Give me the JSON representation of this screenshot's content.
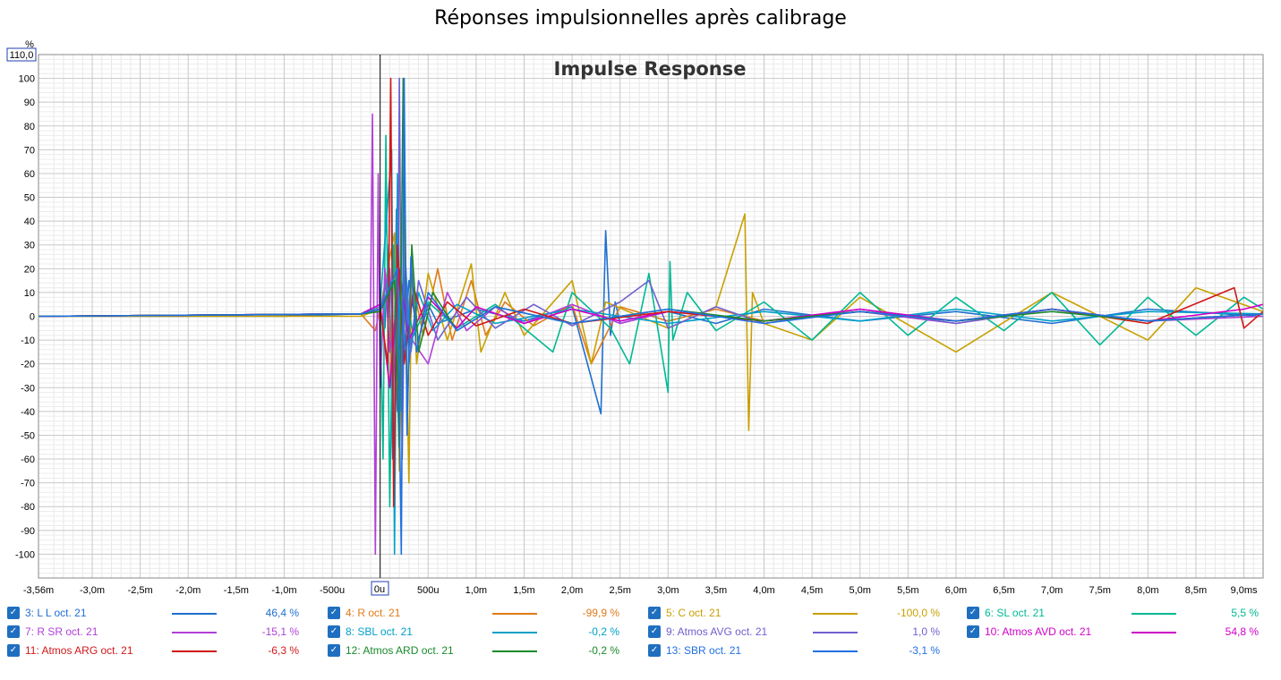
{
  "page_title": "Réponses impulsionnelles après calibrage",
  "chart_data": {
    "type": "line",
    "title": "Impulse Response",
    "ylabel": "%",
    "y_top_marker": "110,0",
    "x_zero_marker": "0u",
    "xlim": [
      -3.56,
      9.2
    ],
    "ylim": [
      -110,
      110
    ],
    "x_ticks": [
      {
        "v": -3.56,
        "label": "-3,56m"
      },
      {
        "v": -3.0,
        "label": "-3,0m"
      },
      {
        "v": -2.5,
        "label": "-2,5m"
      },
      {
        "v": -2.0,
        "label": "-2,0m"
      },
      {
        "v": -1.5,
        "label": "-1,5m"
      },
      {
        "v": -1.0,
        "label": "-1,0m"
      },
      {
        "v": -0.5,
        "label": "-500u"
      },
      {
        "v": 0.5,
        "label": "500u"
      },
      {
        "v": 1.0,
        "label": "1,0m"
      },
      {
        "v": 1.5,
        "label": "1,5m"
      },
      {
        "v": 2.0,
        "label": "2,0m"
      },
      {
        "v": 2.5,
        "label": "2,5m"
      },
      {
        "v": 3.0,
        "label": "3,0m"
      },
      {
        "v": 3.5,
        "label": "3,5m"
      },
      {
        "v": 4.0,
        "label": "4,0m"
      },
      {
        "v": 4.5,
        "label": "4,5m"
      },
      {
        "v": 5.0,
        "label": "5,0m"
      },
      {
        "v": 5.5,
        "label": "5,5m"
      },
      {
        "v": 6.0,
        "label": "6,0m"
      },
      {
        "v": 6.5,
        "label": "6,5m"
      },
      {
        "v": 7.0,
        "label": "7,0m"
      },
      {
        "v": 7.5,
        "label": "7,5m"
      },
      {
        "v": 8.0,
        "label": "8,0m"
      },
      {
        "v": 8.5,
        "label": "8,5m"
      },
      {
        "v": 9.0,
        "label": "9,0ms"
      }
    ],
    "y_ticks": [
      100,
      90,
      80,
      70,
      60,
      50,
      40,
      30,
      20,
      10,
      0,
      -10,
      -20,
      -30,
      -40,
      -50,
      -60,
      -70,
      -80,
      -90,
      -100
    ],
    "series": [
      {
        "name": "3: L L oct. 21",
        "value": "46,4 %",
        "color": "#1f6fd0",
        "x": [
          -3.56,
          -1.0,
          -0.2,
          0.0,
          0.05,
          0.09,
          0.13,
          0.17,
          0.22,
          0.3,
          0.4,
          0.5,
          0.6,
          1.0,
          1.5,
          2.0,
          2.3,
          2.35,
          2.4,
          2.45,
          2.5,
          3.0,
          3.5,
          4.0,
          5.0,
          6.0,
          7.0,
          8.0,
          9.2
        ],
        "y": [
          0,
          0,
          1,
          2,
          -5,
          30,
          -60,
          45,
          -35,
          15,
          -10,
          5,
          -3,
          3,
          -2,
          4,
          -41,
          36,
          -8,
          6,
          -3,
          2,
          -3,
          3,
          -2,
          2,
          -3,
          3,
          0
        ]
      },
      {
        "name": "4: R oct. 21",
        "value": "-99,9 %",
        "color": "#e07b1a",
        "x": [
          -3.56,
          -0.2,
          -0.05,
          0.0,
          0.1,
          0.14,
          0.18,
          0.22,
          0.27,
          0.33,
          0.45,
          0.6,
          0.75,
          0.95,
          1.1,
          1.3,
          1.6,
          2.0,
          2.2,
          2.5,
          3.0,
          3.5,
          4.0,
          5.0,
          6.0,
          7.0,
          8.0,
          9.2
        ],
        "y": [
          0,
          1,
          -6,
          4,
          -30,
          25,
          -15,
          10,
          -5,
          15,
          -8,
          20,
          -10,
          15,
          -8,
          6,
          -4,
          5,
          -20,
          4,
          -2,
          3,
          -2,
          2,
          -2,
          3,
          -2,
          1
        ]
      },
      {
        "name": "5: C oct. 21",
        "value": "-100,0 %",
        "color": "#c8a000",
        "x": [
          -3.56,
          -0.2,
          0.0,
          0.15,
          0.2,
          0.25,
          0.3,
          0.33,
          0.38,
          0.5,
          0.7,
          0.95,
          1.05,
          1.3,
          1.5,
          2.0,
          2.2,
          2.35,
          3.0,
          3.5,
          3.8,
          3.84,
          3.88,
          4.0,
          4.5,
          5.0,
          6.0,
          7.0,
          8.0,
          8.5,
          9.2
        ],
        "y": [
          0,
          0,
          3,
          35,
          -65,
          40,
          -70,
          25,
          -20,
          18,
          -10,
          22,
          -15,
          10,
          -8,
          15,
          -20,
          6,
          -5,
          4,
          43,
          -48,
          10,
          -3,
          -10,
          8,
          -15,
          10,
          -10,
          12,
          2
        ]
      },
      {
        "name": "6: SL oct. 21",
        "value": "5,5 %",
        "color": "#00b894",
        "x": [
          -3.56,
          -0.2,
          0.0,
          0.03,
          0.06,
          0.1,
          0.14,
          0.2,
          0.25,
          0.35,
          0.5,
          0.8,
          1.2,
          1.8,
          2.0,
          2.4,
          2.6,
          2.8,
          3.0,
          3.02,
          3.05,
          3.2,
          3.5,
          4.0,
          4.5,
          5.0,
          5.5,
          6.0,
          6.5,
          7.0,
          7.5,
          8.0,
          8.5,
          9.0,
          9.2
        ],
        "y": [
          0,
          1,
          4,
          -60,
          76,
          -80,
          30,
          -20,
          10,
          -8,
          6,
          -5,
          5,
          -15,
          10,
          -5,
          -20,
          18,
          -32,
          23,
          -10,
          10,
          -6,
          6,
          -10,
          10,
          -8,
          8,
          -6,
          10,
          -12,
          8,
          -8,
          8,
          3
        ]
      },
      {
        "name": "7: R SR oct. 21",
        "value": "-15,1 %",
        "color": "#b040d8",
        "x": [
          -3.56,
          -0.2,
          -0.1,
          -0.08,
          -0.05,
          -0.02,
          0.0,
          0.05,
          0.1,
          0.2,
          0.3,
          0.5,
          0.7,
          0.9,
          1.2,
          1.5,
          2.0,
          2.5,
          3.0,
          4.0,
          5.0,
          6.0,
          7.0,
          8.0,
          9.2
        ],
        "y": [
          0,
          1,
          3,
          85,
          -100,
          60,
          -30,
          20,
          -15,
          10,
          -8,
          -20,
          10,
          -6,
          4,
          -3,
          5,
          -3,
          2,
          -2,
          2,
          -3,
          3,
          -2,
          0
        ]
      },
      {
        "name": "8: SBL oct. 21",
        "value": "-0,2 %",
        "color": "#00a0c8",
        "x": [
          -3.56,
          -0.2,
          0.0,
          0.12,
          0.15,
          0.18,
          0.22,
          0.26,
          0.32,
          0.4,
          0.55,
          0.8,
          1.2,
          2.0,
          3.0,
          4.0,
          5.0,
          6.0,
          7.0,
          8.0,
          9.2
        ],
        "y": [
          0,
          1,
          5,
          70,
          -100,
          60,
          -40,
          25,
          -15,
          10,
          -6,
          5,
          -3,
          3,
          -3,
          2,
          -2,
          3,
          -2,
          2,
          1
        ]
      },
      {
        "name": "9: Atmos AVG oct. 21",
        "value": "1,0 %",
        "color": "#7060d0",
        "x": [
          -3.56,
          -0.2,
          0.0,
          0.1,
          0.18,
          0.2,
          0.23,
          0.26,
          0.3,
          0.4,
          0.6,
          0.9,
          1.2,
          1.6,
          2.0,
          2.5,
          2.8,
          3.0,
          3.5,
          4.0,
          5.0,
          6.0,
          7.0,
          8.0,
          9.2
        ],
        "y": [
          0,
          1,
          3,
          20,
          -40,
          100,
          -60,
          30,
          -20,
          15,
          -10,
          8,
          -5,
          5,
          -4,
          6,
          15,
          -5,
          4,
          -3,
          3,
          -3,
          3,
          -2,
          1
        ]
      },
      {
        "name": "10: Atmos AVD oct. 21",
        "value": "54,8 %",
        "color": "#d000c8",
        "x": [
          -3.56,
          -0.2,
          0.0,
          0.1,
          0.2,
          0.3,
          0.5,
          0.8,
          1.0,
          1.5,
          2.0,
          2.5,
          3.0,
          4.0,
          5.0,
          6.0,
          7.0,
          8.0,
          9.0,
          9.2
        ],
        "y": [
          0,
          1,
          5,
          -30,
          20,
          -10,
          8,
          -5,
          4,
          -3,
          3,
          -2,
          2,
          -2,
          3,
          -2,
          3,
          -2,
          3,
          5
        ]
      },
      {
        "name": "11: Atmos ARG oct. 21",
        "value": "-6,3 %",
        "color": "#d01818",
        "x": [
          -3.56,
          -0.2,
          0.0,
          0.08,
          0.11,
          0.14,
          0.18,
          0.25,
          0.35,
          0.5,
          0.7,
          1.0,
          1.5,
          2.0,
          3.0,
          4.0,
          5.0,
          6.0,
          7.0,
          8.0,
          8.9,
          9.0,
          9.2
        ],
        "y": [
          0,
          1,
          3,
          -20,
          100,
          -80,
          30,
          -20,
          12,
          -8,
          6,
          -4,
          3,
          -3,
          2,
          -2,
          2,
          -2,
          3,
          -3,
          12,
          -5,
          2
        ]
      },
      {
        "name": "12: Atmos ARD oct. 21",
        "value": "-0,2 %",
        "color": "#1a8a2a",
        "x": [
          -3.56,
          -0.2,
          0.0,
          0.15,
          0.2,
          0.24,
          0.28,
          0.33,
          0.4,
          0.55,
          0.8,
          1.2,
          2.0,
          3.0,
          4.0,
          5.0,
          6.0,
          7.0,
          8.0,
          9.2
        ],
        "y": [
          0,
          1,
          2,
          15,
          -55,
          100,
          -45,
          30,
          -15,
          10,
          -6,
          4,
          -3,
          3,
          -2,
          2,
          -2,
          2,
          -2,
          1
        ]
      },
      {
        "name": "13: SBR oct. 21",
        "value": "-3,1 %",
        "color": "#2070e0",
        "x": [
          -3.56,
          -0.2,
          0.0,
          0.18,
          0.22,
          0.25,
          0.28,
          0.32,
          0.38,
          0.5,
          0.8,
          1.2,
          2.0,
          3.0,
          4.0,
          5.0,
          6.0,
          7.0,
          8.0,
          9.2
        ],
        "y": [
          0,
          1,
          3,
          20,
          -100,
          100,
          -50,
          25,
          -15,
          10,
          -6,
          4,
          -3,
          3,
          -3,
          2,
          -2,
          3,
          -2,
          1
        ]
      }
    ]
  }
}
